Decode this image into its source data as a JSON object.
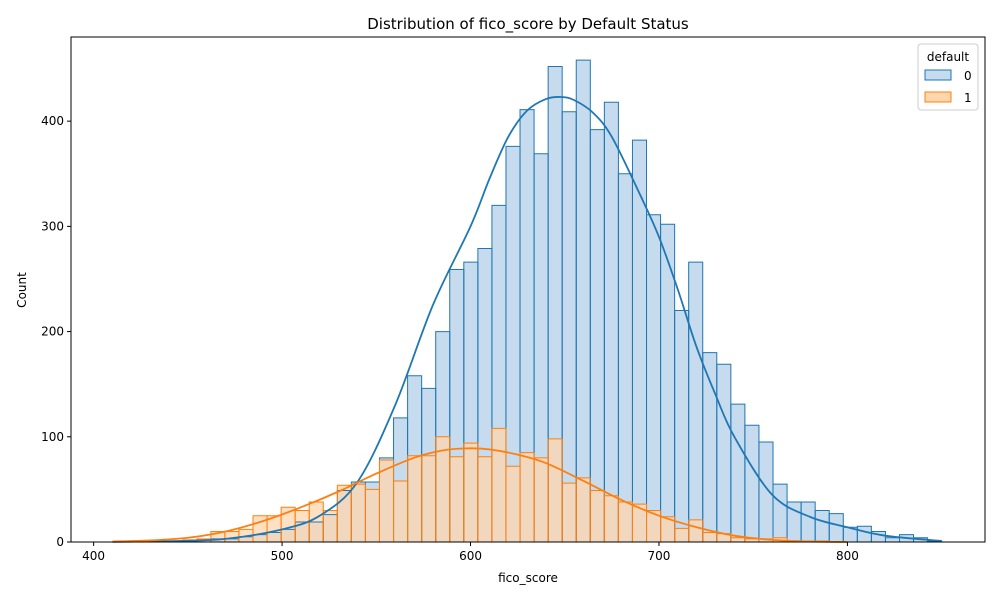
{
  "chart_data": {
    "type": "histogram",
    "title": "Distribution of fico_score by Default Status",
    "xlabel": "fico_score",
    "ylabel": "Count",
    "xlim": [
      388,
      873
    ],
    "ylim": [
      0,
      480
    ],
    "xticks": [
      400,
      500,
      600,
      700,
      800
    ],
    "yticks": [
      0,
      100,
      200,
      300,
      400
    ],
    "grid": false,
    "legend": {
      "title": "default",
      "position": "top-right"
    },
    "bins": [
      410,
      417.46,
      424.92,
      432.37,
      439.83,
      447.29,
      454.75,
      462.2,
      469.66,
      477.12,
      484.58,
      492.03,
      499.49,
      506.95,
      514.41,
      521.86,
      529.32,
      536.78,
      544.24,
      551.69,
      559.15,
      566.61,
      574.07,
      581.53,
      588.98,
      596.44,
      603.9,
      611.36,
      618.81,
      626.27,
      633.73,
      641.19,
      648.64,
      656.1,
      663.56,
      671.02,
      678.47,
      685.93,
      693.39,
      700.85,
      708.31,
      715.76,
      723.22,
      730.68,
      738.14,
      745.59,
      753.05,
      760.51,
      767.97,
      775.42,
      782.88,
      790.34,
      797.8,
      805.25,
      812.71,
      820.17,
      827.63,
      835.08,
      842.54,
      850
    ],
    "series": [
      {
        "name": "0",
        "color": "#1f77b4",
        "fill": "#c6dbed",
        "counts": [
          0,
          0,
          0,
          0,
          0,
          1,
          2,
          3,
          3,
          5,
          7,
          9,
          12,
          19,
          19,
          26,
          49,
          57,
          57,
          80,
          118,
          158,
          146,
          200,
          259,
          266,
          279,
          320,
          376,
          411,
          369,
          452,
          409,
          458,
          392,
          418,
          350,
          382,
          311,
          302,
          220,
          266,
          180,
          169,
          131,
          111,
          95,
          55,
          38,
          38,
          30,
          27,
          14,
          15,
          10,
          4,
          7,
          4,
          1
        ],
        "kde": [
          [
            410,
            0.2
          ],
          [
            440,
            0.8
          ],
          [
            470,
            3
          ],
          [
            500,
            12
          ],
          [
            520,
            25
          ],
          [
            540,
            57
          ],
          [
            560,
            130
          ],
          [
            580,
            225
          ],
          [
            600,
            300
          ],
          [
            610,
            345
          ],
          [
            620,
            385
          ],
          [
            630,
            410
          ],
          [
            640,
            421
          ],
          [
            648,
            423
          ],
          [
            655,
            420
          ],
          [
            665,
            408
          ],
          [
            675,
            385
          ],
          [
            690,
            330
          ],
          [
            700,
            290
          ],
          [
            710,
            240
          ],
          [
            720,
            185
          ],
          [
            730,
            140
          ],
          [
            740,
            100
          ],
          [
            760,
            45
          ],
          [
            780,
            24
          ],
          [
            800,
            14
          ],
          [
            820,
            6
          ],
          [
            850,
            1
          ]
        ]
      },
      {
        "name": "1",
        "color": "#ff7f0e",
        "fill": "#ffd6ae",
        "counts": [
          0,
          0,
          0,
          0,
          1,
          2,
          3,
          10,
          10,
          12,
          25,
          25,
          33,
          30,
          38,
          30,
          54,
          55,
          50,
          78,
          58,
          82,
          82,
          100,
          81,
          94,
          81,
          108,
          72,
          85,
          80,
          98,
          56,
          61,
          49,
          44,
          38,
          36,
          30,
          24,
          13,
          21,
          9,
          8,
          4,
          3,
          3,
          4,
          1,
          1,
          1,
          0,
          0,
          0,
          0,
          0,
          0,
          0,
          0
        ],
        "kde": [
          [
            410,
            0.5
          ],
          [
            430,
            1.5
          ],
          [
            450,
            4
          ],
          [
            470,
            10
          ],
          [
            490,
            20
          ],
          [
            510,
            33
          ],
          [
            530,
            48
          ],
          [
            550,
            65
          ],
          [
            570,
            80
          ],
          [
            585,
            87
          ],
          [
            598,
            89
          ],
          [
            610,
            88
          ],
          [
            625,
            83
          ],
          [
            640,
            75
          ],
          [
            660,
            58
          ],
          [
            680,
            40
          ],
          [
            700,
            25
          ],
          [
            720,
            14
          ],
          [
            740,
            6
          ],
          [
            760,
            2
          ],
          [
            780,
            0.5
          ],
          [
            800,
            0
          ]
        ]
      }
    ]
  }
}
